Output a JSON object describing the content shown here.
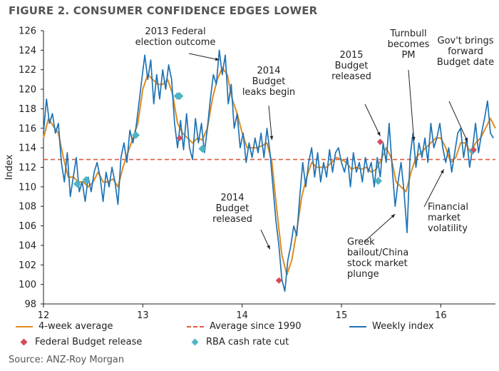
{
  "title": "FIGURE 2. CONSUMER CONFIDENCE EDGES LOWER",
  "source": "Source: ANZ-Roy Morgan",
  "colors": {
    "weekly": "#1f73b4",
    "avg4": "#e08a1e",
    "avg1990": "#e05a44",
    "budget": "#d44b5a",
    "rba": "#4fb3c6",
    "text": "#222222"
  },
  "legend": {
    "avg4": "4-week average",
    "avg1990": "Average since 1990",
    "weekly": "Weekly index",
    "budget": "Federal Budget release",
    "rba": "RBA cash rate cut"
  },
  "chart_data": {
    "type": "line",
    "ylabel": "Index",
    "ylim": [
      98,
      126
    ],
    "yticks": [
      98,
      100,
      102,
      104,
      106,
      108,
      110,
      112,
      114,
      116,
      118,
      120,
      122,
      124,
      126
    ],
    "xlim": [
      12,
      16.55
    ],
    "xticks": [
      12,
      13,
      14,
      15,
      16
    ],
    "avg_since_1990": 112.8,
    "weekly": [
      [
        12.0,
        115.5
      ],
      [
        12.03,
        119.0
      ],
      [
        12.06,
        116.5
      ],
      [
        12.09,
        117.5
      ],
      [
        12.12,
        115.5
      ],
      [
        12.15,
        116.5
      ],
      [
        12.18,
        112.5
      ],
      [
        12.21,
        110.5
      ],
      [
        12.24,
        113.5
      ],
      [
        12.27,
        109.0
      ],
      [
        12.3,
        111.0
      ],
      [
        12.33,
        113.0
      ],
      [
        12.36,
        109.5
      ],
      [
        12.39,
        110.5
      ],
      [
        12.42,
        108.5
      ],
      [
        12.45,
        111.0
      ],
      [
        12.48,
        109.5
      ],
      [
        12.51,
        111.5
      ],
      [
        12.54,
        112.5
      ],
      [
        12.57,
        111.0
      ],
      [
        12.6,
        108.5
      ],
      [
        12.63,
        111.5
      ],
      [
        12.66,
        110.0
      ],
      [
        12.69,
        112.0
      ],
      [
        12.72,
        110.5
      ],
      [
        12.75,
        108.2
      ],
      [
        12.78,
        113.0
      ],
      [
        12.81,
        114.5
      ],
      [
        12.84,
        112.5
      ],
      [
        12.87,
        115.8
      ],
      [
        12.9,
        114.5
      ],
      [
        12.93,
        116.0
      ],
      [
        12.96,
        118.5
      ],
      [
        12.99,
        121.0
      ],
      [
        13.02,
        123.5
      ],
      [
        13.05,
        121.0
      ],
      [
        13.08,
        123.0
      ],
      [
        13.11,
        118.5
      ],
      [
        13.14,
        121.5
      ],
      [
        13.17,
        119.0
      ],
      [
        13.2,
        122.0
      ],
      [
        13.23,
        120.0
      ],
      [
        13.26,
        122.5
      ],
      [
        13.29,
        121.0
      ],
      [
        13.32,
        116.5
      ],
      [
        13.35,
        114.0
      ],
      [
        13.38,
        116.8
      ],
      [
        13.41,
        113.8
      ],
      [
        13.44,
        117.5
      ],
      [
        13.47,
        114.0
      ],
      [
        13.5,
        112.8
      ],
      [
        13.53,
        117.0
      ],
      [
        13.56,
        114.5
      ],
      [
        13.59,
        116.5
      ],
      [
        13.62,
        113.5
      ],
      [
        13.65,
        116.0
      ],
      [
        13.68,
        119.0
      ],
      [
        13.71,
        121.5
      ],
      [
        13.74,
        120.5
      ],
      [
        13.77,
        124.0
      ],
      [
        13.8,
        121.5
      ],
      [
        13.83,
        123.5
      ],
      [
        13.86,
        118.5
      ],
      [
        13.89,
        120.5
      ],
      [
        13.92,
        116.0
      ],
      [
        13.95,
        117.5
      ],
      [
        13.98,
        114.0
      ],
      [
        14.01,
        115.5
      ],
      [
        14.04,
        112.5
      ],
      [
        14.07,
        114.5
      ],
      [
        14.1,
        113.0
      ],
      [
        14.13,
        115.0
      ],
      [
        14.16,
        113.5
      ],
      [
        14.19,
        115.5
      ],
      [
        14.22,
        113.0
      ],
      [
        14.25,
        116.0
      ],
      [
        14.28,
        113.5
      ],
      [
        14.31,
        110.0
      ],
      [
        14.34,
        106.5
      ],
      [
        14.37,
        104.0
      ],
      [
        14.4,
        100.5
      ],
      [
        14.43,
        99.3
      ],
      [
        14.46,
        102.5
      ],
      [
        14.49,
        104.0
      ],
      [
        14.52,
        106.0
      ],
      [
        14.55,
        105.0
      ],
      [
        14.58,
        109.0
      ],
      [
        14.61,
        112.5
      ],
      [
        14.64,
        110.0
      ],
      [
        14.67,
        112.5
      ],
      [
        14.7,
        114.0
      ],
      [
        14.73,
        111.0
      ],
      [
        14.76,
        113.5
      ],
      [
        14.79,
        110.5
      ],
      [
        14.82,
        112.5
      ],
      [
        14.85,
        111.0
      ],
      [
        14.88,
        113.8
      ],
      [
        14.91,
        111.5
      ],
      [
        14.94,
        113.5
      ],
      [
        14.97,
        114.0
      ],
      [
        15.0,
        112.5
      ],
      [
        15.03,
        111.5
      ],
      [
        15.06,
        113.0
      ],
      [
        15.09,
        110.0
      ],
      [
        15.12,
        113.5
      ],
      [
        15.15,
        111.5
      ],
      [
        15.18,
        112.5
      ],
      [
        15.21,
        110.5
      ],
      [
        15.24,
        113.0
      ],
      [
        15.27,
        111.5
      ],
      [
        15.3,
        112.5
      ],
      [
        15.33,
        110.0
      ],
      [
        15.36,
        113.0
      ],
      [
        15.39,
        111.0
      ],
      [
        15.42,
        114.5
      ],
      [
        15.45,
        112.5
      ],
      [
        15.48,
        116.5
      ],
      [
        15.51,
        112.0
      ],
      [
        15.54,
        108.0
      ],
      [
        15.57,
        110.5
      ],
      [
        15.6,
        112.5
      ],
      [
        15.63,
        109.5
      ],
      [
        15.66,
        105.3
      ],
      [
        15.69,
        113.0
      ],
      [
        15.72,
        115.5
      ],
      [
        15.75,
        112.0
      ],
      [
        15.78,
        114.5
      ],
      [
        15.81,
        113.0
      ],
      [
        15.84,
        115.0
      ],
      [
        15.87,
        112.5
      ],
      [
        15.9,
        116.5
      ],
      [
        15.93,
        114.0
      ],
      [
        15.96,
        115.0
      ],
      [
        15.99,
        116.5
      ],
      [
        16.02,
        114.0
      ],
      [
        16.05,
        112.5
      ],
      [
        16.08,
        114.0
      ],
      [
        16.11,
        111.5
      ],
      [
        16.14,
        113.5
      ],
      [
        16.17,
        115.5
      ],
      [
        16.2,
        116.0
      ],
      [
        16.23,
        113.0
      ],
      [
        16.26,
        115.0
      ],
      [
        16.29,
        112.0
      ],
      [
        16.32,
        114.0
      ],
      [
        16.35,
        116.5
      ],
      [
        16.38,
        113.5
      ],
      [
        16.41,
        115.5
      ],
      [
        16.44,
        117.0
      ],
      [
        16.47,
        118.8
      ],
      [
        16.5,
        115.5
      ],
      [
        16.53,
        115.0
      ]
    ],
    "four_week_avg": [
      [
        12.0,
        115.0
      ],
      [
        12.05,
        117.0
      ],
      [
        12.1,
        116.2
      ],
      [
        12.15,
        115.5
      ],
      [
        12.2,
        113.0
      ],
      [
        12.25,
        111.0
      ],
      [
        12.3,
        111.0
      ],
      [
        12.35,
        110.5
      ],
      [
        12.4,
        110.5
      ],
      [
        12.45,
        110.0
      ],
      [
        12.5,
        110.5
      ],
      [
        12.55,
        111.5
      ],
      [
        12.6,
        110.5
      ],
      [
        12.65,
        110.5
      ],
      [
        12.7,
        110.8
      ],
      [
        12.75,
        110.0
      ],
      [
        12.8,
        112.0
      ],
      [
        12.85,
        113.5
      ],
      [
        12.9,
        115.0
      ],
      [
        12.95,
        116.5
      ],
      [
        13.0,
        120.0
      ],
      [
        13.05,
        121.5
      ],
      [
        13.1,
        121.0
      ],
      [
        13.15,
        120.5
      ],
      [
        13.2,
        120.5
      ],
      [
        13.25,
        121.0
      ],
      [
        13.3,
        119.5
      ],
      [
        13.35,
        116.5
      ],
      [
        13.4,
        115.5
      ],
      [
        13.45,
        115.0
      ],
      [
        13.5,
        114.5
      ],
      [
        13.55,
        115.0
      ],
      [
        13.6,
        114.8
      ],
      [
        13.65,
        116.0
      ],
      [
        13.7,
        119.0
      ],
      [
        13.75,
        121.0
      ],
      [
        13.8,
        122.2
      ],
      [
        13.85,
        121.5
      ],
      [
        13.9,
        119.0
      ],
      [
        13.95,
        117.5
      ],
      [
        14.0,
        115.5
      ],
      [
        14.05,
        114.0
      ],
      [
        14.1,
        114.0
      ],
      [
        14.15,
        114.0
      ],
      [
        14.2,
        114.2
      ],
      [
        14.25,
        114.5
      ],
      [
        14.3,
        112.5
      ],
      [
        14.35,
        107.5
      ],
      [
        14.4,
        103.0
      ],
      [
        14.45,
        101.0
      ],
      [
        14.5,
        102.5
      ],
      [
        14.55,
        105.5
      ],
      [
        14.6,
        109.0
      ],
      [
        14.65,
        111.0
      ],
      [
        14.7,
        112.5
      ],
      [
        14.75,
        112.0
      ],
      [
        14.8,
        112.0
      ],
      [
        14.85,
        112.0
      ],
      [
        14.9,
        112.5
      ],
      [
        14.95,
        113.0
      ],
      [
        15.0,
        112.8
      ],
      [
        15.05,
        112.5
      ],
      [
        15.1,
        111.8
      ],
      [
        15.15,
        112.0
      ],
      [
        15.2,
        111.8
      ],
      [
        15.25,
        112.0
      ],
      [
        15.3,
        111.5
      ],
      [
        15.35,
        111.8
      ],
      [
        15.4,
        112.8
      ],
      [
        15.45,
        114.0
      ],
      [
        15.5,
        113.0
      ],
      [
        15.55,
        110.5
      ],
      [
        15.6,
        110.0
      ],
      [
        15.65,
        109.5
      ],
      [
        15.7,
        111.5
      ],
      [
        15.75,
        113.0
      ],
      [
        15.8,
        113.5
      ],
      [
        15.85,
        114.0
      ],
      [
        15.9,
        114.5
      ],
      [
        15.95,
        115.0
      ],
      [
        16.0,
        115.0
      ],
      [
        16.05,
        114.0
      ],
      [
        16.1,
        112.5
      ],
      [
        16.15,
        113.0
      ],
      [
        16.2,
        114.5
      ],
      [
        16.25,
        114.5
      ],
      [
        16.3,
        113.5
      ],
      [
        16.35,
        114.5
      ],
      [
        16.4,
        115.0
      ],
      [
        16.45,
        116.0
      ],
      [
        16.5,
        117.0
      ],
      [
        16.55,
        116.0
      ]
    ],
    "budget_markers": [
      [
        13.37,
        115.0
      ],
      [
        14.37,
        100.4
      ],
      [
        15.39,
        114.6
      ],
      [
        16.33,
        113.8
      ]
    ],
    "rba_markers": [
      [
        12.34,
        110.3
      ],
      [
        12.43,
        110.7
      ],
      [
        12.93,
        115.3
      ],
      [
        13.35,
        119.3
      ],
      [
        13.37,
        119.3
      ],
      [
        13.6,
        113.9
      ],
      [
        15.37,
        110.6
      ],
      [
        16.32,
        113.7
      ]
    ],
    "annotations": [
      {
        "lines": [
          "2013 Federal",
          "election outcome"
        ],
        "anchor": [
          13.77,
          123.0
        ]
      },
      {
        "lines": [
          "2014",
          "Budget",
          "leaks begin"
        ],
        "anchor": [
          14.3,
          114.8
        ]
      },
      {
        "lines": [
          "2014",
          "Budget",
          "released"
        ],
        "anchor": [
          14.28,
          103.6
        ]
      },
      {
        "lines": [
          "2015",
          "Budget",
          "released"
        ],
        "anchor": [
          15.39,
          115.2
        ]
      },
      {
        "lines": [
          "Turnbull",
          "becomes",
          "PM"
        ],
        "anchor": [
          15.73,
          114.7
        ]
      },
      {
        "lines": [
          "Gov't brings",
          "forward",
          "Budget date"
        ],
        "anchor": [
          16.27,
          114.6
        ]
      },
      {
        "lines": [
          "Financial",
          "market",
          "volatility"
        ],
        "anchor": [
          16.03,
          111.8
        ]
      },
      {
        "lines": [
          "Greek",
          "bailout/China",
          "stock market",
          "plunge"
        ],
        "anchor": [
          15.54,
          107.2
        ]
      }
    ]
  }
}
